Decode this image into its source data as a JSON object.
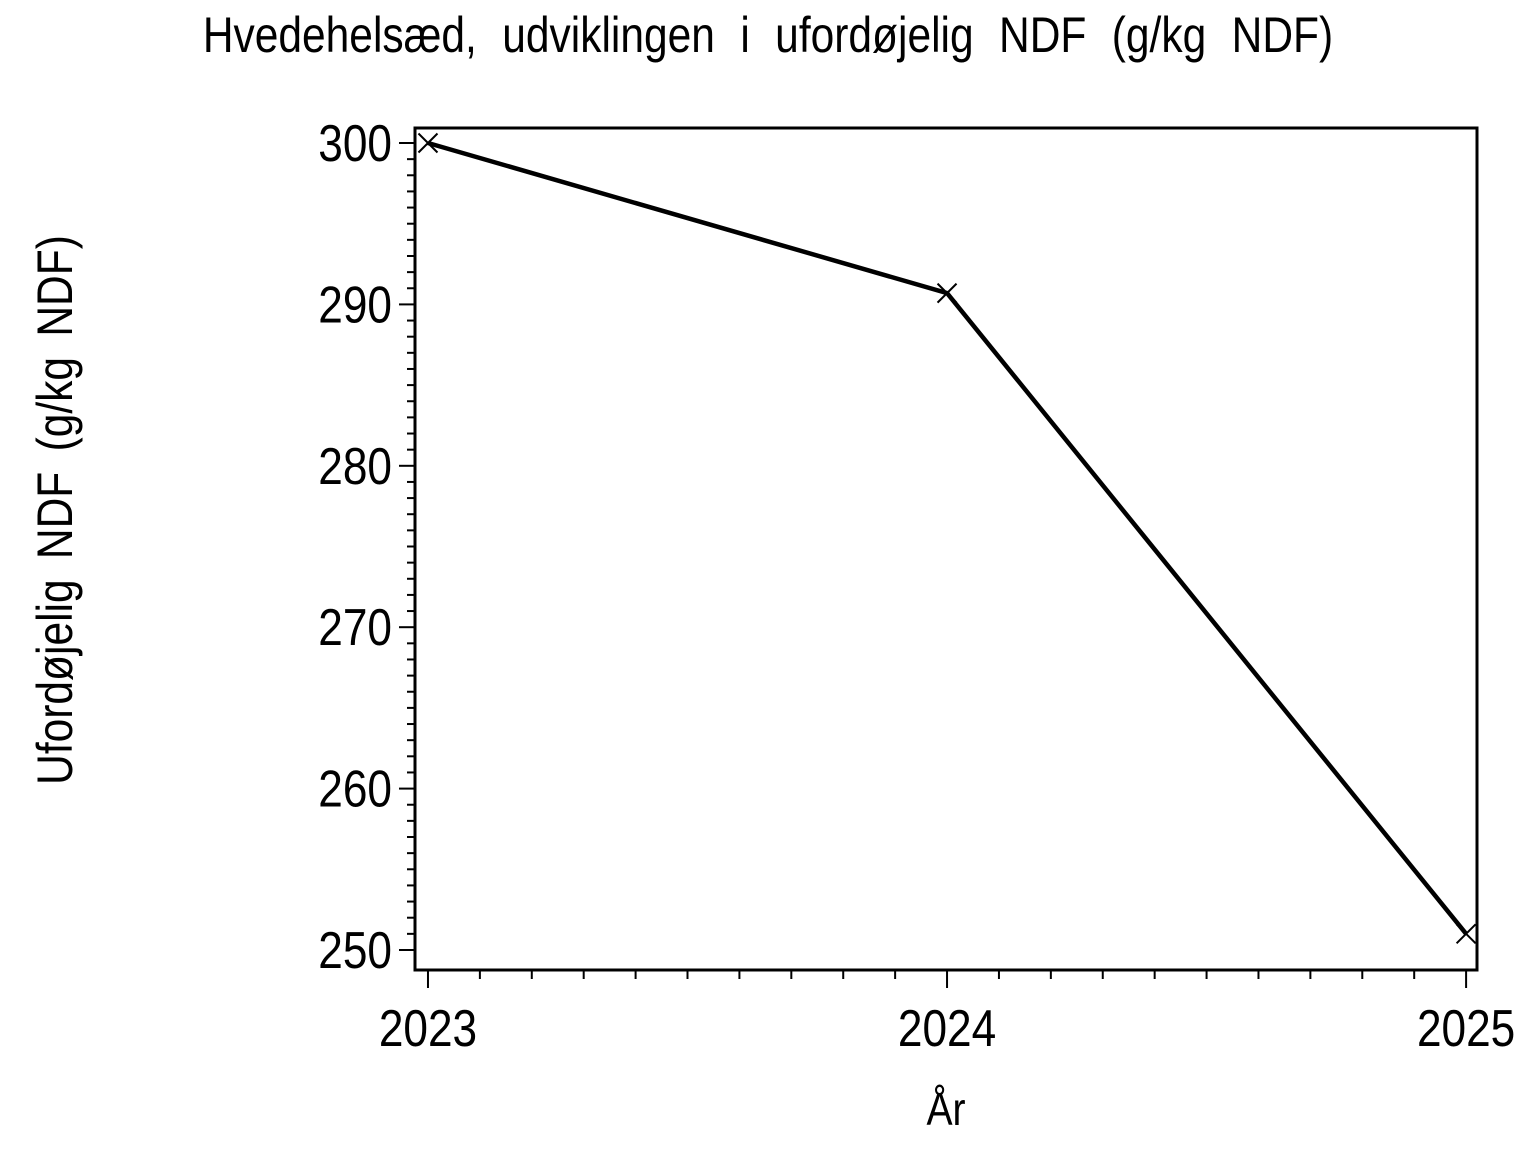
{
  "chart_data": {
    "type": "line",
    "title": "Hvedehelsæd, udviklingen i ufordøjelig NDF (g/kg NDF)",
    "xlabel": "År",
    "ylabel": "Ufordøjelig NDF (g/kg NDF)",
    "x": [
      2023,
      2024,
      2025
    ],
    "series": [
      {
        "name": "Ufordøjelig NDF",
        "values": [
          300,
          290.7,
          251
        ]
      }
    ],
    "marker": "x",
    "line_style": "solid",
    "grid": false,
    "legend": "none",
    "colors": {
      "line": "#000000",
      "axis": "#000000",
      "text": "#000000",
      "background": "#ffffff"
    },
    "xlim": [
      2022.975,
      2025.021
    ],
    "ylim": [
      248.76,
      300.93
    ],
    "xticks": {
      "major": [
        2023,
        2024,
        2025
      ],
      "labels": [
        "2023",
        "2024",
        "2025"
      ],
      "minor_step": 0.1
    },
    "yticks": {
      "major": [
        250,
        260,
        270,
        280,
        290,
        300
      ],
      "labels": [
        "250",
        "260",
        "270",
        "280",
        "290",
        "300"
      ],
      "minor_step": 1
    }
  }
}
